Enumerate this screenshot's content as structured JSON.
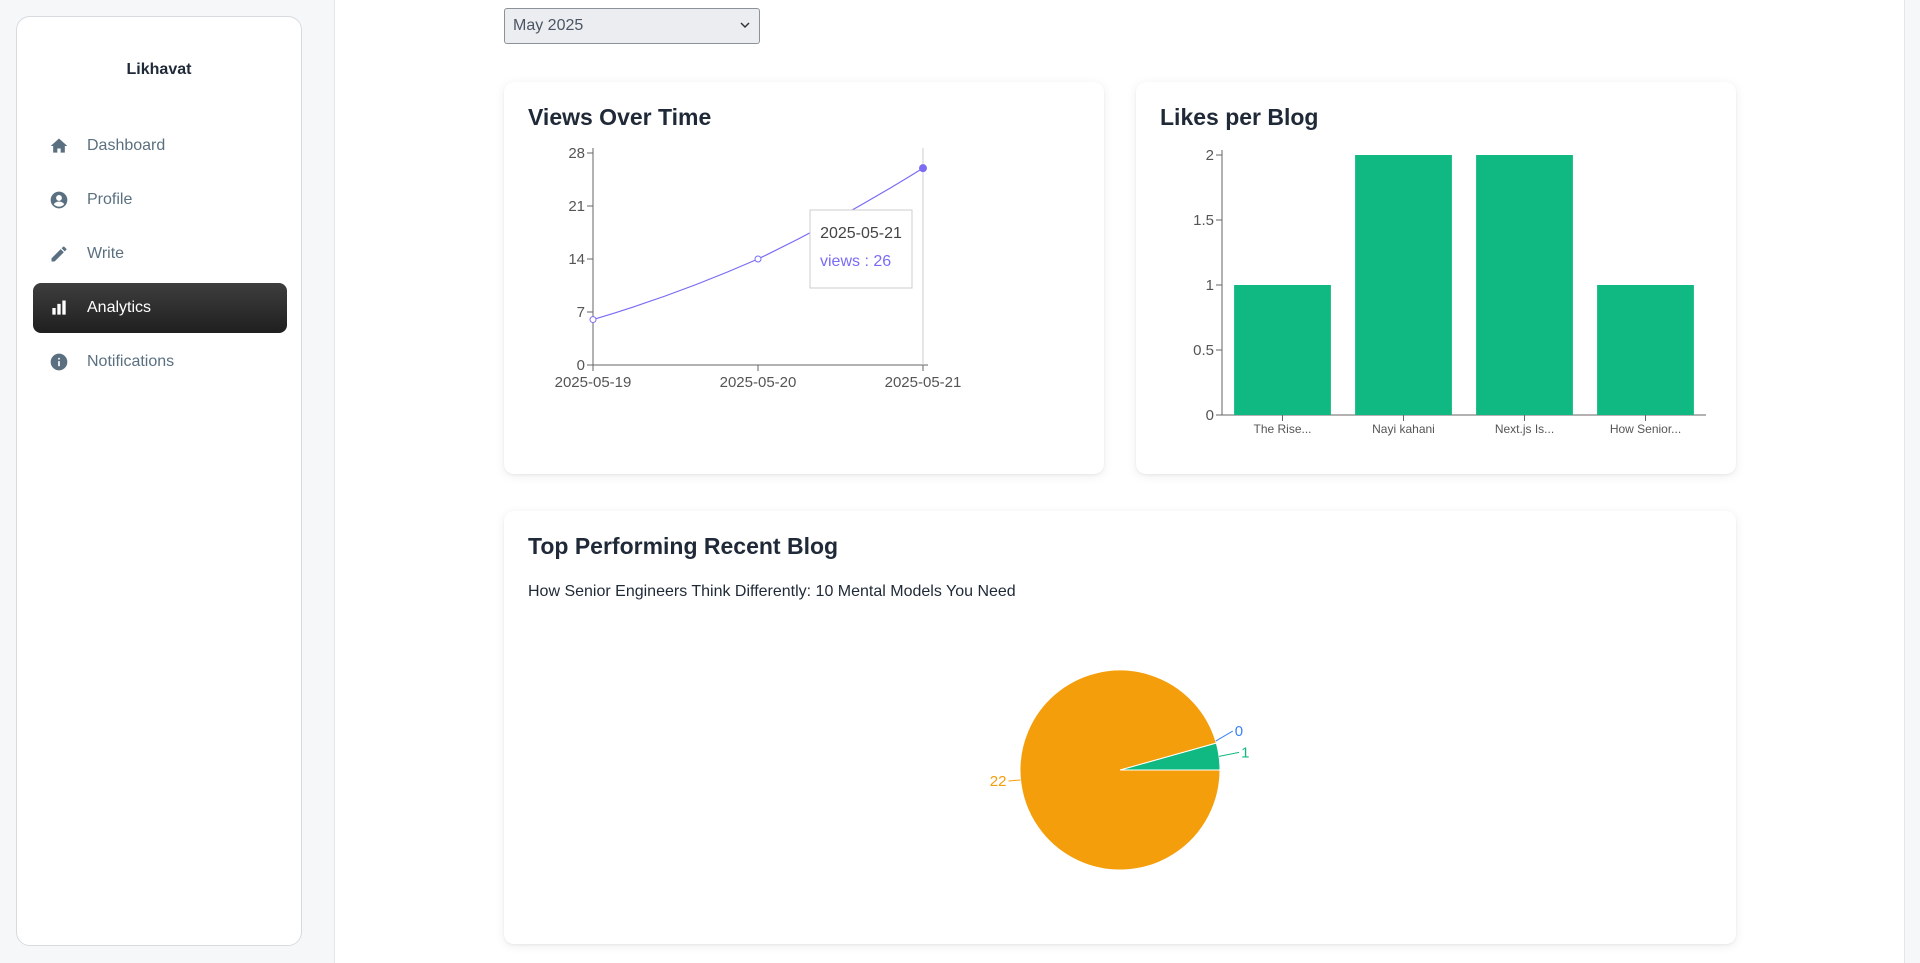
{
  "sidebar": {
    "brand": "Likhavat",
    "items": [
      {
        "label": "Dashboard",
        "icon": "home-icon",
        "active": false
      },
      {
        "label": "Profile",
        "icon": "user-circle-icon",
        "active": false
      },
      {
        "label": "Write",
        "icon": "pencil-icon",
        "active": false
      },
      {
        "label": "Analytics",
        "icon": "bar-chart-icon",
        "active": true
      },
      {
        "label": "Notifications",
        "icon": "info-icon",
        "active": false
      }
    ]
  },
  "filter": {
    "selected": "May 2025"
  },
  "views_card": {
    "title": "Views Over Time"
  },
  "likes_card": {
    "title": "Likes per Blog"
  },
  "top_card": {
    "title": "Top Performing Recent Blog",
    "blog_title": "How Senior Engineers Think Differently: 10 Mental Models You Need"
  },
  "colors": {
    "line": "#7a6cf5",
    "bar": "#10b981",
    "pie_views": "#f59e0b",
    "pie_likes": "#10b981",
    "pie_comments": "#3b82f6",
    "active_nav": "#2e2e2e"
  },
  "chart_data": [
    {
      "type": "line",
      "x": [
        "2025-05-19",
        "2025-05-20",
        "2025-05-21"
      ],
      "series": [
        {
          "name": "views",
          "values": [
            6,
            14,
            26
          ]
        }
      ],
      "yticks": [
        0,
        7,
        14,
        21,
        28
      ],
      "ylim": [
        0,
        28
      ],
      "tooltip": {
        "date": "2025-05-21",
        "text": "views : 26"
      }
    },
    {
      "type": "bar",
      "categories": [
        "The Rise...",
        "Nayi kahani",
        "Next.js Is...",
        "How Senior..."
      ],
      "values": [
        1,
        2,
        2,
        1
      ],
      "yticks": [
        "0",
        "0.5",
        "1",
        "1.5",
        "2"
      ],
      "ylim": [
        0,
        2
      ]
    },
    {
      "type": "pie",
      "slices": [
        {
          "value": 22,
          "label": "22",
          "color": "#f59e0b"
        },
        {
          "value": 1,
          "label": "1",
          "color": "#10b981"
        },
        {
          "value": 0,
          "label": "0",
          "color": "#3b82f6"
        }
      ]
    }
  ]
}
